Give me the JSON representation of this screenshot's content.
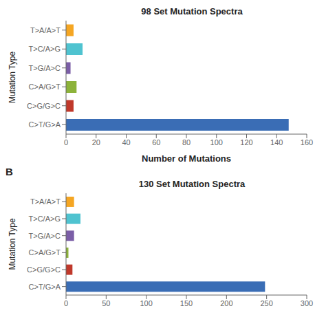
{
  "chart_data": [
    {
      "type": "bar",
      "orientation": "horizontal",
      "title": "98 Set Mutation Spectra",
      "categories": [
        "C>T/G>A",
        "C>G/G>C",
        "C>A/G>T",
        "T>G/A>C",
        "T>C/A>G",
        "T>A/A>T"
      ],
      "values": [
        148,
        5,
        7,
        3,
        11,
        5
      ],
      "colors": [
        "#3A6DB5",
        "#C0392B",
        "#8DB33A",
        "#7B5EA7",
        "#4FC3D0",
        "#F5A623"
      ],
      "xlabel": "Number of Mutations",
      "ylabel": "Mutation Type",
      "xlim": [
        0,
        160
      ],
      "xticks": [
        0,
        20,
        40,
        60,
        80,
        100,
        120,
        140,
        160
      ]
    },
    {
      "type": "bar",
      "orientation": "horizontal",
      "annotation": "B",
      "title": "130 Set Mutation Spectra",
      "categories": [
        "C>T/G>A",
        "C>G/G>C",
        "C>A/G>T",
        "T>G/A>C",
        "T>C/A>G",
        "T>A/A>T"
      ],
      "values": [
        248,
        8,
        3,
        10,
        18,
        10
      ],
      "colors": [
        "#3A6DB5",
        "#C0392B",
        "#8DB33A",
        "#7B5EA7",
        "#4FC3D0",
        "#F5A623"
      ],
      "ylabel": "Mutation Type",
      "xlim": [
        0,
        300
      ],
      "xticks": [
        0,
        50,
        100,
        150,
        200,
        250,
        300
      ]
    }
  ]
}
